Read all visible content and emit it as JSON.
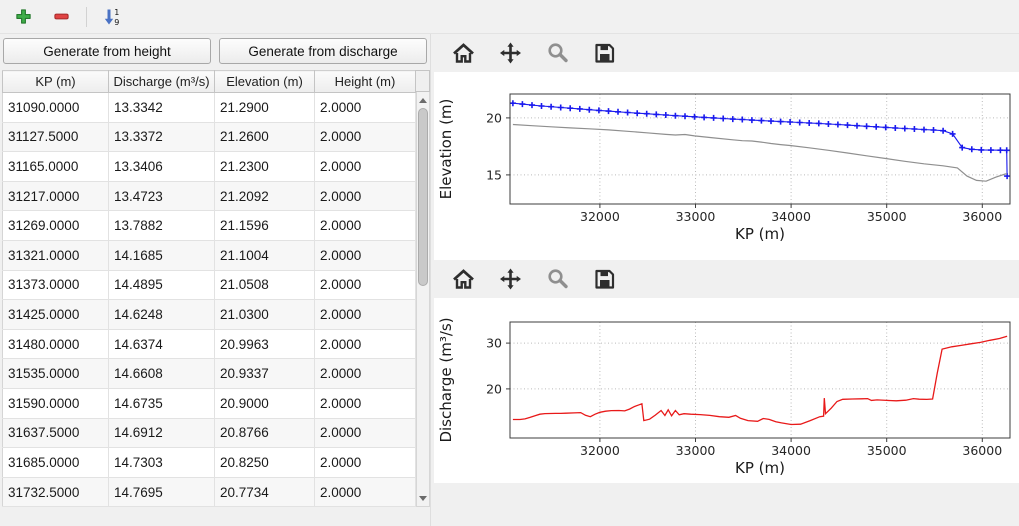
{
  "window": {
    "background": "#f0f0f0"
  },
  "main_toolbar": {
    "icons": [
      "add-row-icon",
      "remove-row-icon",
      "sort-ascending-icon"
    ],
    "sort_top_digit": "1",
    "sort_bottom_digit": "9",
    "add_color": "#3fae49",
    "remove_color": "#e04343",
    "sort_color": "#4a72c4"
  },
  "buttons": {
    "generate_height": "Generate from height",
    "generate_discharge": "Generate from discharge"
  },
  "table": {
    "columns": [
      "KP (m)",
      "Discharge (m³/s)",
      "Elevation (m)",
      "Height (m)"
    ],
    "rows": [
      [
        "31090.0000",
        "13.3342",
        "21.2900",
        "2.0000"
      ],
      [
        "31127.5000",
        "13.3372",
        "21.2600",
        "2.0000"
      ],
      [
        "31165.0000",
        "13.3406",
        "21.2300",
        "2.0000"
      ],
      [
        "31217.0000",
        "13.4723",
        "21.2092",
        "2.0000"
      ],
      [
        "31269.0000",
        "13.7882",
        "21.1596",
        "2.0000"
      ],
      [
        "31321.0000",
        "14.1685",
        "21.1004",
        "2.0000"
      ],
      [
        "31373.0000",
        "14.4895",
        "21.0508",
        "2.0000"
      ],
      [
        "31425.0000",
        "14.6248",
        "21.0300",
        "2.0000"
      ],
      [
        "31480.0000",
        "14.6374",
        "20.9963",
        "2.0000"
      ],
      [
        "31535.0000",
        "14.6608",
        "20.9337",
        "2.0000"
      ],
      [
        "31590.0000",
        "14.6735",
        "20.9000",
        "2.0000"
      ],
      [
        "31637.5000",
        "14.6912",
        "20.8766",
        "2.0000"
      ],
      [
        "31685.0000",
        "14.7303",
        "20.8250",
        "2.0000"
      ],
      [
        "31732.5000",
        "14.7695",
        "20.7734",
        "2.0000"
      ]
    ]
  },
  "nav_toolbar": {
    "icons": [
      "home-icon",
      "pan-icon",
      "zoom-icon",
      "save-icon"
    ]
  },
  "chart_data": [
    {
      "type": "line",
      "title": "",
      "xlabel": "KP (m)",
      "ylabel": "Elevation (m)",
      "xlim": [
        31060,
        36290
      ],
      "ylim": [
        12.45,
        22.1
      ],
      "xticks": [
        32000,
        33000,
        34000,
        35000,
        36000
      ],
      "yticks": [
        15,
        20
      ],
      "grid": true,
      "legend": false,
      "series": [
        {
          "name": "water-surface-elevation",
          "color": "#1a1aee",
          "marker": "+",
          "width": 1.1,
          "points": [
            [
              31090,
              21.29
            ],
            [
              31190,
              21.21
            ],
            [
              31290,
              21.13
            ],
            [
              31390,
              21.05
            ],
            [
              31490,
              20.99
            ],
            [
              31590,
              20.92
            ],
            [
              31690,
              20.85
            ],
            [
              31790,
              20.79
            ],
            [
              31890,
              20.72
            ],
            [
              31990,
              20.66
            ],
            [
              32090,
              20.6
            ],
            [
              32190,
              20.54
            ],
            [
              32290,
              20.48
            ],
            [
              32390,
              20.42
            ],
            [
              32490,
              20.37
            ],
            [
              32590,
              20.31
            ],
            [
              32690,
              20.26
            ],
            [
              32790,
              20.2
            ],
            [
              32890,
              20.15
            ],
            [
              32990,
              20.1
            ],
            [
              33090,
              20.05
            ],
            [
              33190,
              20.0
            ],
            [
              33290,
              19.95
            ],
            [
              33390,
              19.9
            ],
            [
              33490,
              19.86
            ],
            [
              33590,
              19.81
            ],
            [
              33690,
              19.77
            ],
            [
              33790,
              19.72
            ],
            [
              33890,
              19.68
            ],
            [
              33990,
              19.64
            ],
            [
              34090,
              19.6
            ],
            [
              34190,
              19.56
            ],
            [
              34290,
              19.52
            ],
            [
              34390,
              19.47
            ],
            [
              34490,
              19.42
            ],
            [
              34590,
              19.37
            ],
            [
              34690,
              19.32
            ],
            [
              34790,
              19.27
            ],
            [
              34890,
              19.22
            ],
            [
              34990,
              19.17
            ],
            [
              35090,
              19.12
            ],
            [
              35190,
              19.07
            ],
            [
              35290,
              19.03
            ],
            [
              35390,
              18.98
            ],
            [
              35490,
              18.94
            ],
            [
              35590,
              18.88
            ],
            [
              35690,
              18.6
            ],
            [
              35790,
              17.4
            ],
            [
              35890,
              17.25
            ],
            [
              35990,
              17.2
            ],
            [
              36090,
              17.18
            ],
            [
              36190,
              17.17
            ],
            [
              36255,
              17.16
            ],
            [
              36260,
              14.9
            ]
          ]
        },
        {
          "name": "bed-elevation",
          "color": "#8f8f8f",
          "marker": null,
          "width": 1.2,
          "points": [
            [
              31090,
              19.42
            ],
            [
              31290,
              19.32
            ],
            [
              31490,
              19.22
            ],
            [
              31690,
              19.13
            ],
            [
              31890,
              19.05
            ],
            [
              32090,
              18.95
            ],
            [
              32290,
              18.83
            ],
            [
              32490,
              18.7
            ],
            [
              32690,
              18.56
            ],
            [
              32790,
              18.5
            ],
            [
              32890,
              18.55
            ],
            [
              32990,
              18.42
            ],
            [
              33190,
              18.25
            ],
            [
              33390,
              18.08
            ],
            [
              33490,
              18.0
            ],
            [
              33590,
              17.98
            ],
            [
              33690,
              17.88
            ],
            [
              33790,
              17.76
            ],
            [
              33890,
              17.66
            ],
            [
              33990,
              17.58
            ],
            [
              34190,
              17.38
            ],
            [
              34390,
              17.16
            ],
            [
              34590,
              16.92
            ],
            [
              34790,
              16.68
            ],
            [
              34990,
              16.44
            ],
            [
              35190,
              16.2
            ],
            [
              35390,
              15.98
            ],
            [
              35590,
              15.8
            ],
            [
              35740,
              15.62
            ],
            [
              35840,
              14.9
            ],
            [
              35940,
              14.52
            ],
            [
              36040,
              14.45
            ],
            [
              36140,
              14.8
            ],
            [
              36240,
              15.08
            ],
            [
              36260,
              15.1
            ]
          ]
        }
      ]
    },
    {
      "type": "line",
      "title": "",
      "xlabel": "KP (m)",
      "ylabel": "Discharge (m³/s)",
      "xlim": [
        31060,
        36290
      ],
      "ylim": [
        9.3,
        34.6
      ],
      "xticks": [
        32000,
        33000,
        34000,
        35000,
        36000
      ],
      "yticks": [
        20,
        30
      ],
      "grid": true,
      "legend": false,
      "series": [
        {
          "name": "discharge",
          "color": "#e81919",
          "marker": null,
          "width": 1.3,
          "points": [
            [
              31090,
              13.33
            ],
            [
              31130,
              13.34
            ],
            [
              31165,
              13.34
            ],
            [
              31217,
              13.47
            ],
            [
              31269,
              13.79
            ],
            [
              31321,
              14.17
            ],
            [
              31373,
              14.49
            ],
            [
              31425,
              14.62
            ],
            [
              31480,
              14.64
            ],
            [
              31535,
              14.66
            ],
            [
              31590,
              14.67
            ],
            [
              31645,
              14.7
            ],
            [
              31732,
              14.77
            ],
            [
              31800,
              14.84
            ],
            [
              31850,
              14.25
            ],
            [
              31900,
              13.95
            ],
            [
              31950,
              14.5
            ],
            [
              32000,
              14.9
            ],
            [
              32060,
              15.15
            ],
            [
              32120,
              15.28
            ],
            [
              32200,
              15.3
            ],
            [
              32260,
              15.22
            ],
            [
              32310,
              15.6
            ],
            [
              32360,
              16.15
            ],
            [
              32410,
              16.55
            ],
            [
              32440,
              16.75
            ],
            [
              32460,
              13.1
            ],
            [
              32520,
              13.4
            ],
            [
              32580,
              14.3
            ],
            [
              32640,
              15.3
            ],
            [
              32680,
              14.2
            ],
            [
              32715,
              15.45
            ],
            [
              32750,
              14.15
            ],
            [
              32790,
              15.3
            ],
            [
              32830,
              14.35
            ],
            [
              32880,
              14.6
            ],
            [
              32950,
              14.5
            ],
            [
              33050,
              14.4
            ],
            [
              33150,
              14.22
            ],
            [
              33250,
              13.95
            ],
            [
              33350,
              13.82
            ],
            [
              33420,
              14.2
            ],
            [
              33470,
              13.6
            ],
            [
              33550,
              13.1
            ],
            [
              33650,
              12.95
            ],
            [
              33710,
              13.55
            ],
            [
              33770,
              13.35
            ],
            [
              33840,
              12.85
            ],
            [
              33900,
              12.6
            ],
            [
              34000,
              12.25
            ],
            [
              34100,
              12.32
            ],
            [
              34200,
              13.1
            ],
            [
              34300,
              13.95
            ],
            [
              34340,
              14.05
            ],
            [
              34348,
              18.0
            ],
            [
              34360,
              14.6
            ],
            [
              34420,
              15.8
            ],
            [
              34480,
              17.25
            ],
            [
              34540,
              17.75
            ],
            [
              34640,
              17.8
            ],
            [
              34740,
              17.85
            ],
            [
              34800,
              17.9
            ],
            [
              34840,
              17.5
            ],
            [
              34900,
              17.62
            ],
            [
              35000,
              17.5
            ],
            [
              35100,
              17.42
            ],
            [
              35200,
              17.55
            ],
            [
              35280,
              17.9
            ],
            [
              35340,
              17.76
            ],
            [
              35420,
              17.72
            ],
            [
              35480,
              17.8
            ],
            [
              35530,
              23.5
            ],
            [
              35580,
              28.7
            ],
            [
              35680,
              29.2
            ],
            [
              35780,
              29.5
            ],
            [
              35880,
              29.85
            ],
            [
              35980,
              30.15
            ],
            [
              36080,
              30.6
            ],
            [
              36180,
              31.0
            ],
            [
              36260,
              31.5
            ]
          ]
        }
      ]
    }
  ]
}
